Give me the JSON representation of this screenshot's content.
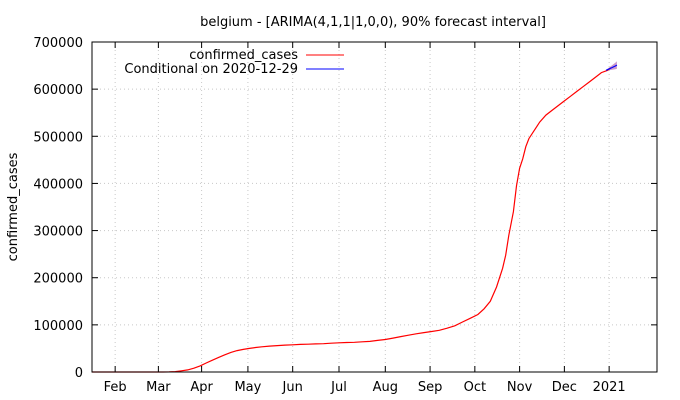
{
  "chart_data": {
    "type": "line",
    "title": "belgium -  [ARIMA(4,1,1|1,0,0), 90% forecast interval]",
    "xlabel": "",
    "ylabel": "confirmed_cases",
    "xlim": [
      0,
      366
    ],
    "ylim": [
      0,
      700000
    ],
    "x_ticks": [
      {
        "label": "Feb",
        "x": 15
      },
      {
        "label": "Mar",
        "x": 43
      },
      {
        "label": "Apr",
        "x": 71
      },
      {
        "label": "May",
        "x": 101
      },
      {
        "label": "Jun",
        "x": 130
      },
      {
        "label": "Jul",
        "x": 160
      },
      {
        "label": "Aug",
        "x": 190
      },
      {
        "label": "Sep",
        "x": 219
      },
      {
        "label": "Oct",
        "x": 248
      },
      {
        "label": "Nov",
        "x": 277
      },
      {
        "label": "Dec",
        "x": 306
      },
      {
        "label": "2021",
        "x": 335
      }
    ],
    "y_ticks": [
      0,
      100000,
      200000,
      300000,
      400000,
      500000,
      600000,
      700000
    ],
    "grid": true,
    "legend_position": "top-left",
    "series": [
      {
        "name": "confirmed_cases",
        "color": "#ff0000",
        "points": [
          [
            0,
            0
          ],
          [
            46,
            0
          ],
          [
            50,
            200
          ],
          [
            54,
            800
          ],
          [
            58,
            2500
          ],
          [
            62,
            4500
          ],
          [
            66,
            8000
          ],
          [
            70,
            13000
          ],
          [
            74,
            19000
          ],
          [
            78,
            25000
          ],
          [
            82,
            31000
          ],
          [
            86,
            36500
          ],
          [
            90,
            41500
          ],
          [
            94,
            45500
          ],
          [
            98,
            48000
          ],
          [
            102,
            50000
          ],
          [
            106,
            52000
          ],
          [
            110,
            53500
          ],
          [
            115,
            55000
          ],
          [
            120,
            56000
          ],
          [
            125,
            57000
          ],
          [
            130,
            57800
          ],
          [
            135,
            58500
          ],
          [
            140,
            59000
          ],
          [
            145,
            59500
          ],
          [
            150,
            60000
          ],
          [
            155,
            61000
          ],
          [
            160,
            62000
          ],
          [
            165,
            62500
          ],
          [
            170,
            63000
          ],
          [
            175,
            64000
          ],
          [
            180,
            65000
          ],
          [
            185,
            67000
          ],
          [
            190,
            69000
          ],
          [
            195,
            72000
          ],
          [
            200,
            75000
          ],
          [
            205,
            78000
          ],
          [
            210,
            81000
          ],
          [
            215,
            83500
          ],
          [
            220,
            86000
          ],
          [
            225,
            88500
          ],
          [
            230,
            93000
          ],
          [
            235,
            98000
          ],
          [
            240,
            106000
          ],
          [
            245,
            114000
          ],
          [
            250,
            122000
          ],
          [
            254,
            134000
          ],
          [
            258,
            150000
          ],
          [
            262,
            180000
          ],
          [
            266,
            220000
          ],
          [
            268,
            248000
          ],
          [
            270,
            290000
          ],
          [
            273,
            340000
          ],
          [
            275,
            395000
          ],
          [
            277,
            432000
          ],
          [
            279,
            452000
          ],
          [
            281,
            478000
          ],
          [
            283,
            495000
          ],
          [
            286,
            510000
          ],
          [
            290,
            530000
          ],
          [
            294,
            545000
          ],
          [
            298,
            555000
          ],
          [
            302,
            565000
          ],
          [
            306,
            575000
          ],
          [
            310,
            585000
          ],
          [
            314,
            595000
          ],
          [
            318,
            605000
          ],
          [
            322,
            615000
          ],
          [
            326,
            625000
          ],
          [
            330,
            635000
          ],
          [
            334,
            640000
          ],
          [
            336,
            645000
          ]
        ]
      },
      {
        "name": "Conditional on 2020-12-29",
        "color": "#0000ff",
        "band_color": "#cc99cc",
        "points": [
          [
            333,
            640000
          ],
          [
            335,
            643000
          ],
          [
            337,
            646000
          ],
          [
            339,
            649000
          ],
          [
            340,
            651000
          ]
        ],
        "band_upper": [
          [
            333,
            641000
          ],
          [
            335,
            646000
          ],
          [
            337,
            651000
          ],
          [
            339,
            656000
          ],
          [
            340,
            659000
          ]
        ],
        "band_lower": [
          [
            333,
            639000
          ],
          [
            335,
            640000
          ],
          [
            337,
            641000
          ],
          [
            339,
            642000
          ],
          [
            340,
            643000
          ]
        ]
      }
    ]
  }
}
